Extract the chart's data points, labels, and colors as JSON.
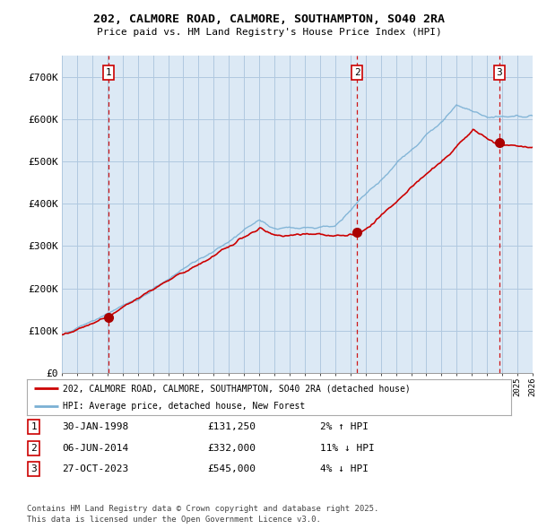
{
  "title_line1": "202, CALMORE ROAD, CALMORE, SOUTHAMPTON, SO40 2RA",
  "title_line2": "Price paid vs. HM Land Registry's House Price Index (HPI)",
  "background_color": "#ffffff",
  "plot_bg_color": "#dce9f5",
  "grid_color": "#b0c8e0",
  "red_line_color": "#cc0000",
  "blue_line_color": "#7ab0d4",
  "sale_marker_color": "#aa0000",
  "sale_dashes_color": "#cc0000",
  "legend_label_red": "202, CALMORE ROAD, CALMORE, SOUTHAMPTON, SO40 2RA (detached house)",
  "legend_label_blue": "HPI: Average price, detached house, New Forest",
  "sales": [
    {
      "num": 1,
      "date_label": "30-JAN-1998",
      "price": 131250,
      "pct": "2%",
      "dir": "↑",
      "year": 1998.08
    },
    {
      "num": 2,
      "date_label": "06-JUN-2014",
      "price": 332000,
      "pct": "11%",
      "dir": "↓",
      "year": 2014.43
    },
    {
      "num": 3,
      "date_label": "27-OCT-2023",
      "price": 545000,
      "pct": "4%",
      "dir": "↓",
      "year": 2023.82
    }
  ],
  "ylim": [
    0,
    750000
  ],
  "yticks": [
    0,
    100000,
    200000,
    300000,
    400000,
    500000,
    600000,
    700000
  ],
  "ytick_labels": [
    "£0",
    "£100K",
    "£200K",
    "£300K",
    "£400K",
    "£500K",
    "£600K",
    "£700K"
  ],
  "xlim_start": 1995,
  "xlim_end": 2026,
  "footer_line1": "Contains HM Land Registry data © Crown copyright and database right 2025.",
  "footer_line2": "This data is licensed under the Open Government Licence v3.0."
}
